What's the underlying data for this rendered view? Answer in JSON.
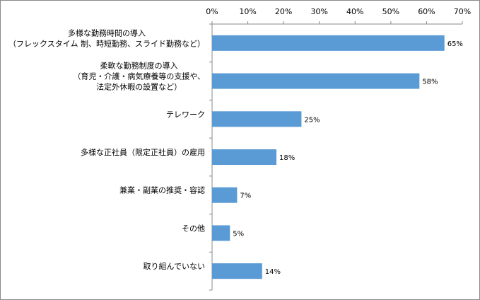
{
  "chart_data": {
    "type": "barh",
    "categories": [
      [
        "多様な勤務時間の導入",
        "（フレックスタイム 制、時短勤務、スライド勤務など）"
      ],
      [
        "柔軟な勤務制度の導入",
        "（育児・介護・病気療養等の支援や、",
        "法定外休暇の設置など）"
      ],
      [
        "テレワーク"
      ],
      [
        "多様な正社員（限定正社員）の雇用"
      ],
      [
        "兼業・副業の推奨・容認"
      ],
      [
        "その他"
      ],
      [
        "取り組んでいない"
      ]
    ],
    "values": [
      65,
      58,
      25,
      18,
      7,
      5,
      14
    ],
    "value_labels": [
      "65%",
      "58%",
      "25%",
      "18%",
      "7%",
      "5%",
      "14%"
    ],
    "color": "#5b9bd5",
    "xlim": [
      0,
      70
    ],
    "xticks": [
      {
        "value": 0,
        "label": "0%"
      },
      {
        "value": 10,
        "label": "10%"
      },
      {
        "value": 20,
        "label": "20%"
      },
      {
        "value": 30,
        "label": "30%"
      },
      {
        "value": 40,
        "label": "40%"
      },
      {
        "value": 50,
        "label": "50%"
      },
      {
        "value": 60,
        "label": "60%"
      },
      {
        "value": 70,
        "label": "70%"
      }
    ]
  }
}
